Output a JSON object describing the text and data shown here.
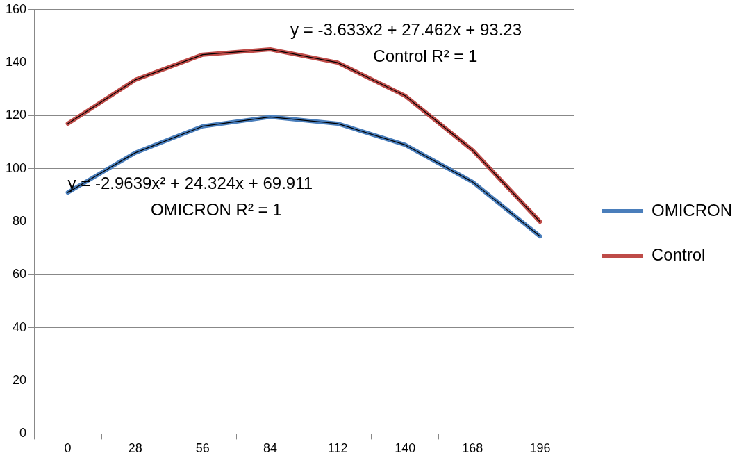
{
  "chart_data": {
    "type": "line",
    "categories": [
      "0",
      "28",
      "56",
      "84",
      "112",
      "140",
      "168",
      "196"
    ],
    "series": [
      {
        "name": "OMICRON",
        "color": "#4a7ebb",
        "values": [
          91,
          106,
          116,
          119.5,
          117,
          109,
          95,
          74.5
        ]
      },
      {
        "name": "Control",
        "color": "#be4b48",
        "values": [
          117,
          133.5,
          143,
          145,
          140,
          127.5,
          107,
          80
        ]
      },
      {
        "type": "line",
        "color": "#000000",
        "values": [
          91,
          106,
          116,
          119.5,
          117,
          109,
          95,
          74.5
        ]
      },
      {
        "type": "line",
        "color": "#000000",
        "values": [
          117,
          133.5,
          143,
          145,
          140,
          127.5,
          107,
          80
        ]
      }
    ],
    "ylim": [
      0,
      160
    ],
    "yticks": [
      0,
      20,
      40,
      60,
      80,
      100,
      120,
      140,
      160
    ],
    "grid": "y",
    "legend": "right",
    "marker": "none",
    "line_style": "solid",
    "annotations": [
      "y = -3.633x2 + 27.462x + 93.23",
      "Control R² = 1",
      "y = -2.9639x² + 24.324x + 69.911",
      "OMICRON R² = 1"
    ]
  }
}
